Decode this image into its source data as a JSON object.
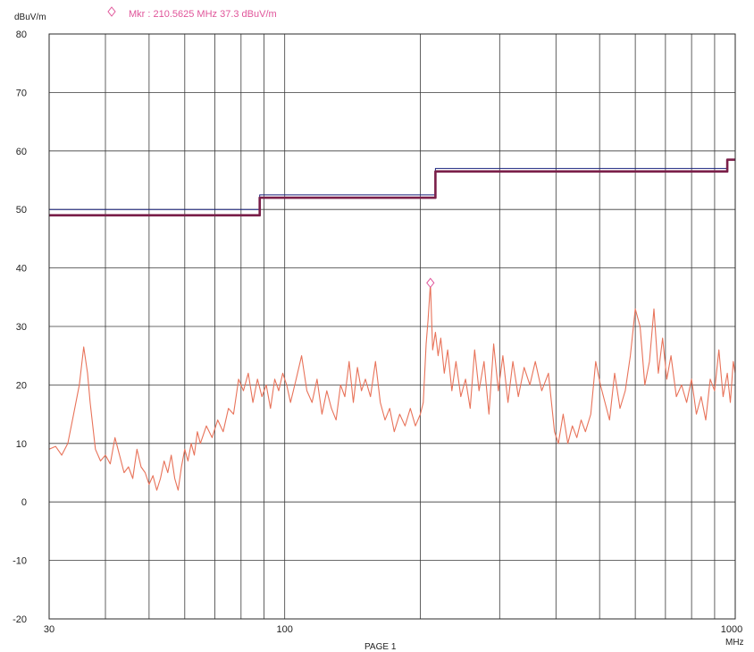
{
  "chart_data": {
    "type": "line",
    "y_unit_label": "dBuV/m",
    "x_unit_label": "MHz",
    "page_label": "PAGE 1",
    "x_scale": "log",
    "xlim": [
      30,
      1000
    ],
    "ylim": [
      -20,
      80
    ],
    "y_ticks": [
      -20,
      -10,
      0,
      10,
      20,
      30,
      40,
      50,
      60,
      70,
      80
    ],
    "x_tick_labels": [
      {
        "value": 30,
        "label": "30"
      },
      {
        "value": 100,
        "label": "100"
      },
      {
        "value": 1000,
        "label": "1000"
      }
    ],
    "x_gridlines": [
      30,
      40,
      50,
      60,
      70,
      80,
      90,
      100,
      200,
      300,
      400,
      500,
      600,
      700,
      800,
      900,
      1000
    ],
    "y_gridlines": [
      -20,
      -10,
      0,
      10,
      20,
      30,
      40,
      50,
      60,
      70,
      80
    ],
    "grid": true,
    "marker": {
      "legend_text": "Mkr  :  210.5625 MHz   37.3 dBuV/m",
      "frequency_mhz": 210.5625,
      "level_dbuv_m": 37.3,
      "symbol": "diamond",
      "color": "#e0559a"
    },
    "series": [
      {
        "color": "#1a237e",
        "style": "thin",
        "points": [
          [
            30,
            50
          ],
          [
            88,
            50
          ],
          [
            88,
            52.5
          ],
          [
            216,
            52.5
          ],
          [
            216,
            57
          ],
          [
            960,
            57
          ],
          [
            960,
            58.5
          ],
          [
            1000,
            58.5
          ]
        ]
      },
      {
        "color": "#7a1f49",
        "style": "thick",
        "points": [
          [
            30,
            49
          ],
          [
            88,
            49
          ],
          [
            88,
            52
          ],
          [
            216,
            52
          ],
          [
            216,
            56.5
          ],
          [
            960,
            56.5
          ],
          [
            960,
            58.5
          ],
          [
            1000,
            58.5
          ]
        ]
      },
      {
        "color": "#e8735a",
        "style": "noise",
        "points": [
          [
            30,
            9
          ],
          [
            31,
            9.5
          ],
          [
            32,
            8
          ],
          [
            33,
            10
          ],
          [
            34,
            15
          ],
          [
            35,
            20
          ],
          [
            35.8,
            26.5
          ],
          [
            36.5,
            22
          ],
          [
            37,
            17
          ],
          [
            38,
            9
          ],
          [
            39,
            7
          ],
          [
            40,
            8
          ],
          [
            41,
            6.5
          ],
          [
            42,
            11
          ],
          [
            43,
            8
          ],
          [
            44,
            5
          ],
          [
            45,
            6
          ],
          [
            46,
            4
          ],
          [
            47,
            9
          ],
          [
            48,
            6
          ],
          [
            49,
            5
          ],
          [
            50,
            3
          ],
          [
            51,
            4.5
          ],
          [
            52,
            2
          ],
          [
            53,
            4
          ],
          [
            54,
            7
          ],
          [
            55,
            5
          ],
          [
            56,
            8
          ],
          [
            57,
            4
          ],
          [
            58,
            2
          ],
          [
            59,
            6
          ],
          [
            60,
            9
          ],
          [
            61,
            7
          ],
          [
            62,
            10
          ],
          [
            63,
            8
          ],
          [
            64,
            12
          ],
          [
            65,
            10
          ],
          [
            67,
            13
          ],
          [
            69,
            11
          ],
          [
            71,
            14
          ],
          [
            73,
            12
          ],
          [
            75,
            16
          ],
          [
            77,
            15
          ],
          [
            79,
            21
          ],
          [
            81,
            19
          ],
          [
            83,
            22
          ],
          [
            85,
            17
          ],
          [
            87,
            21
          ],
          [
            89,
            18
          ],
          [
            91,
            20
          ],
          [
            93,
            16
          ],
          [
            95,
            21
          ],
          [
            97,
            19
          ],
          [
            99,
            22
          ],
          [
            101,
            20
          ],
          [
            103,
            17
          ],
          [
            106,
            21
          ],
          [
            109,
            25
          ],
          [
            112,
            19
          ],
          [
            115,
            17
          ],
          [
            118,
            21
          ],
          [
            121,
            15
          ],
          [
            124,
            19
          ],
          [
            127,
            16
          ],
          [
            130,
            14
          ],
          [
            133,
            20
          ],
          [
            136,
            18
          ],
          [
            139,
            24
          ],
          [
            142,
            17
          ],
          [
            145,
            23
          ],
          [
            148,
            19
          ],
          [
            151,
            21
          ],
          [
            155,
            18
          ],
          [
            159,
            24
          ],
          [
            163,
            17
          ],
          [
            167,
            14
          ],
          [
            171,
            16
          ],
          [
            175,
            12
          ],
          [
            180,
            15
          ],
          [
            185,
            13
          ],
          [
            190,
            16
          ],
          [
            195,
            13
          ],
          [
            200,
            15
          ],
          [
            203,
            17
          ],
          [
            206,
            27
          ],
          [
            208,
            31
          ],
          [
            210.5625,
            37.3
          ],
          [
            213,
            26
          ],
          [
            216,
            29
          ],
          [
            219,
            25
          ],
          [
            222,
            28
          ],
          [
            226,
            22
          ],
          [
            230,
            26
          ],
          [
            235,
            19
          ],
          [
            240,
            24
          ],
          [
            246,
            18
          ],
          [
            252,
            21
          ],
          [
            258,
            16
          ],
          [
            264,
            26
          ],
          [
            270,
            19
          ],
          [
            277,
            24
          ],
          [
            284,
            15
          ],
          [
            291,
            27
          ],
          [
            298,
            19
          ],
          [
            305,
            25
          ],
          [
            313,
            17
          ],
          [
            321,
            24
          ],
          [
            330,
            18
          ],
          [
            340,
            23
          ],
          [
            350,
            20
          ],
          [
            360,
            24
          ],
          [
            372,
            19
          ],
          [
            385,
            22
          ],
          [
            397,
            12
          ],
          [
            405,
            10
          ],
          [
            415,
            15
          ],
          [
            425,
            10
          ],
          [
            435,
            13
          ],
          [
            445,
            11
          ],
          [
            455,
            14
          ],
          [
            465,
            12
          ],
          [
            478,
            15
          ],
          [
            490,
            24
          ],
          [
            502,
            20
          ],
          [
            514,
            17
          ],
          [
            526,
            14
          ],
          [
            540,
            22
          ],
          [
            555,
            16
          ],
          [
            570,
            19
          ],
          [
            585,
            25
          ],
          [
            600,
            33
          ],
          [
            615,
            30
          ],
          [
            630,
            20
          ],
          [
            645,
            24
          ],
          [
            660,
            33
          ],
          [
            675,
            22
          ],
          [
            690,
            28
          ],
          [
            705,
            21
          ],
          [
            720,
            25
          ],
          [
            740,
            18
          ],
          [
            760,
            20
          ],
          [
            780,
            17
          ],
          [
            800,
            21
          ],
          [
            820,
            15
          ],
          [
            840,
            18
          ],
          [
            860,
            14
          ],
          [
            880,
            21
          ],
          [
            900,
            19
          ],
          [
            920,
            26
          ],
          [
            940,
            18
          ],
          [
            960,
            22
          ],
          [
            975,
            17
          ],
          [
            990,
            24
          ],
          [
            1000,
            22
          ]
        ]
      }
    ]
  }
}
